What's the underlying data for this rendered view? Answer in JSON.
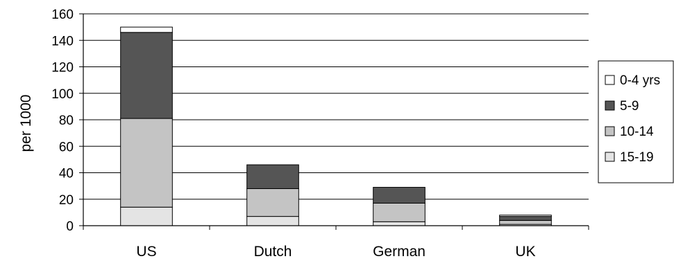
{
  "chart_data": {
    "type": "bar",
    "stacked": true,
    "title": "",
    "xlabel": "",
    "ylabel": "per 1000",
    "ylim": [
      0,
      160
    ],
    "yticks": [
      "0",
      "20",
      "40",
      "60",
      "80",
      "100",
      "120",
      "140",
      "160"
    ],
    "grid": true,
    "legend_position": "right",
    "categories": [
      "US",
      "Dutch",
      "German",
      "UK"
    ],
    "series": [
      {
        "name": "15-19",
        "color": "#e4e4e4",
        "values": [
          14,
          7,
          3,
          1
        ]
      },
      {
        "name": "10-14",
        "color": "#c4c4c4",
        "values": [
          67,
          21,
          14,
          3
        ]
      },
      {
        "name": "5-9",
        "color": "#555555",
        "values": [
          65,
          18,
          12,
          3
        ]
      },
      {
        "name": "0-4 yrs",
        "color": "#ffffff",
        "values": [
          4,
          0,
          0,
          1
        ]
      }
    ],
    "legend_order": [
      "0-4 yrs",
      "5-9",
      "10-14",
      "15-19"
    ]
  }
}
